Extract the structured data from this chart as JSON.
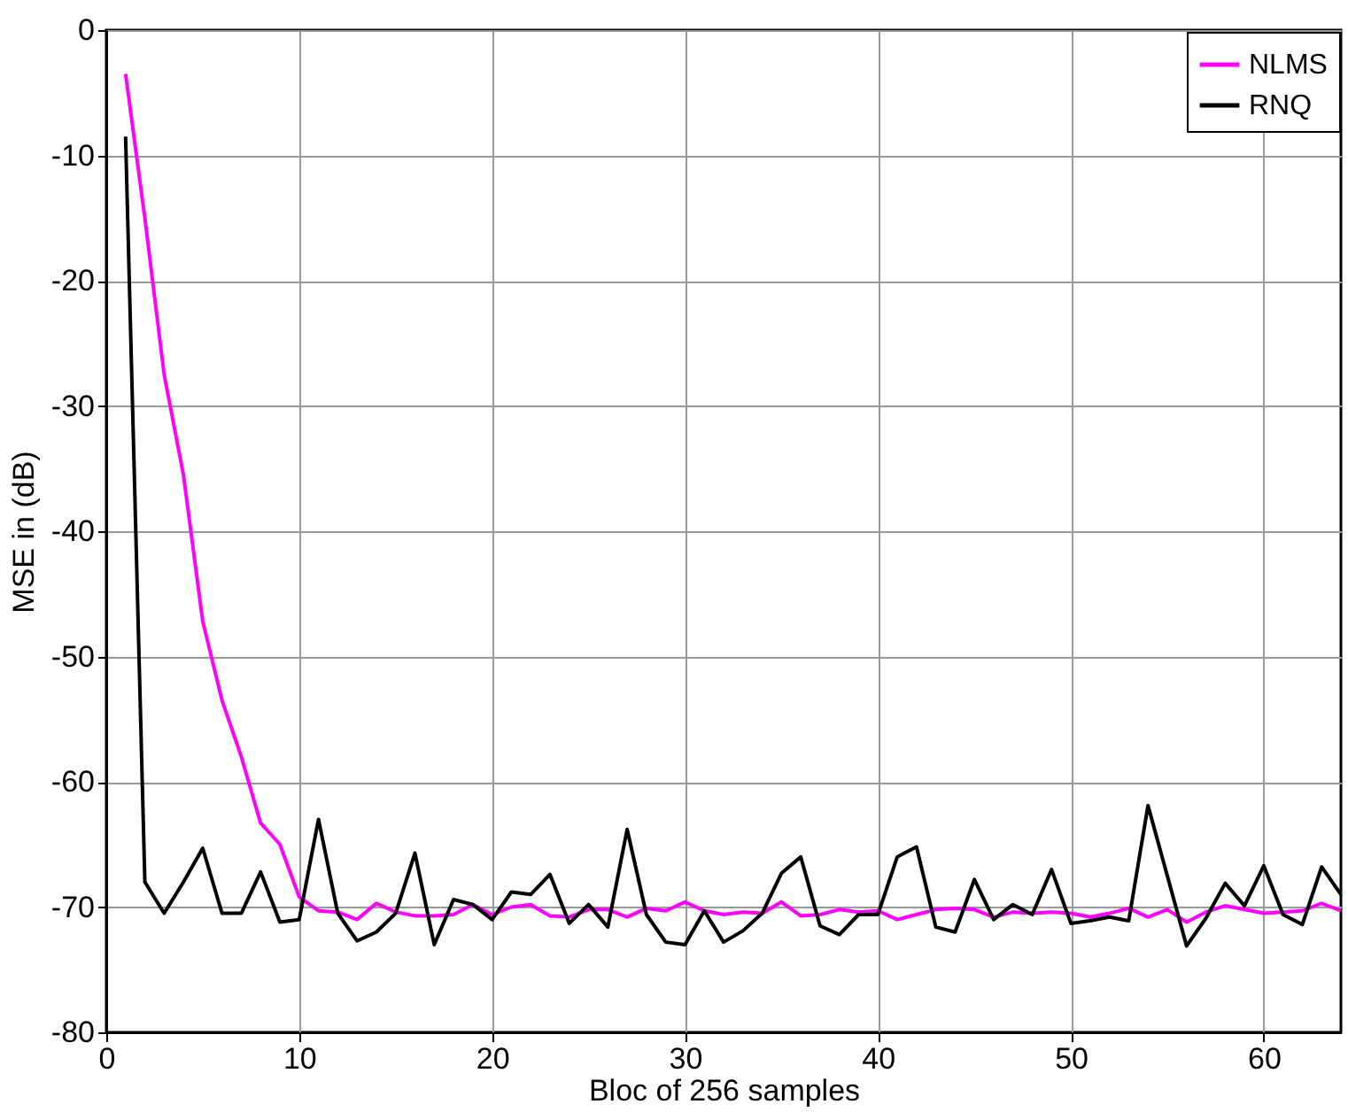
{
  "chart_data": {
    "type": "line",
    "xlabel": "Bloc of 256 samples",
    "ylabel": "MSE in (dB)",
    "x": [
      1,
      2,
      3,
      4,
      5,
      6,
      7,
      8,
      9,
      10,
      11,
      12,
      13,
      14,
      15,
      16,
      17,
      18,
      19,
      20,
      21,
      22,
      23,
      24,
      25,
      26,
      27,
      28,
      29,
      30,
      31,
      32,
      33,
      34,
      35,
      36,
      37,
      38,
      39,
      40,
      41,
      42,
      43,
      44,
      45,
      46,
      47,
      48,
      49,
      50,
      51,
      52,
      53,
      54,
      55,
      56,
      57,
      58,
      59,
      60,
      61,
      62,
      63,
      64
    ],
    "series": [
      {
        "name": "NLMS",
        "color": "#ff00ff",
        "values": [
          -3.5,
          -15,
          -27.5,
          -35.5,
          -47.2,
          -53.5,
          -58,
          -63.3,
          -65,
          -69.2,
          -70.3,
          -70.4,
          -71,
          -69.7,
          -70.4,
          -70.7,
          -70.7,
          -70.6,
          -69.8,
          -70.6,
          -70,
          -69.8,
          -70.7,
          -70.8,
          -70.2,
          -70.2,
          -70.8,
          -70.1,
          -70.3,
          -69.6,
          -70.3,
          -70.6,
          -70.4,
          -70.5,
          -69.6,
          -70.7,
          -70.6,
          -70.2,
          -70.4,
          -70.3,
          -71,
          -70.6,
          -70.2,
          -70.1,
          -70.2,
          -70.8,
          -70.4,
          -70.5,
          -70.4,
          -70.5,
          -70.8,
          -70.5,
          -70.1,
          -70.8,
          -70.2,
          -71.2,
          -70.4,
          -69.9,
          -70.2,
          -70.5,
          -70.4,
          -70.3,
          -69.7,
          -70.3
        ]
      },
      {
        "name": "RNQ",
        "color": "#000000",
        "values": [
          -8.5,
          -68,
          -70.5,
          -68,
          -65.3,
          -70.5,
          -70.5,
          -67.2,
          -71.2,
          -71,
          -63,
          -70.5,
          -72.7,
          -72,
          -70.5,
          -65.7,
          -73,
          -69.4,
          -69.8,
          -71,
          -68.8,
          -69,
          -67.4,
          -71.3,
          -69.8,
          -71.6,
          -63.8,
          -70.6,
          -72.8,
          -73,
          -70.3,
          -72.8,
          -71.9,
          -70.5,
          -67.3,
          -66,
          -71.5,
          -72.2,
          -70.6,
          -70.6,
          -66,
          -65.2,
          -71.6,
          -72,
          -67.8,
          -71,
          -69.8,
          -70.6,
          -67,
          -71.3,
          -71.1,
          -70.8,
          -71.1,
          -61.9,
          -67.5,
          -73.1,
          -70.9,
          -68.1,
          -69.9,
          -66.7,
          -70.6,
          -71.4,
          -66.8,
          -69
        ]
      }
    ],
    "xlim": [
      0,
      64
    ],
    "xticks": [
      0,
      10,
      20,
      30,
      40,
      50,
      60
    ],
    "ylim": [
      -80,
      0
    ],
    "yticks": [
      -80,
      -70,
      -60,
      -50,
      -40,
      -30,
      -20,
      -10,
      0
    ],
    "grid": true,
    "legend": "top right",
    "marker": "none",
    "line_style": "solid"
  }
}
